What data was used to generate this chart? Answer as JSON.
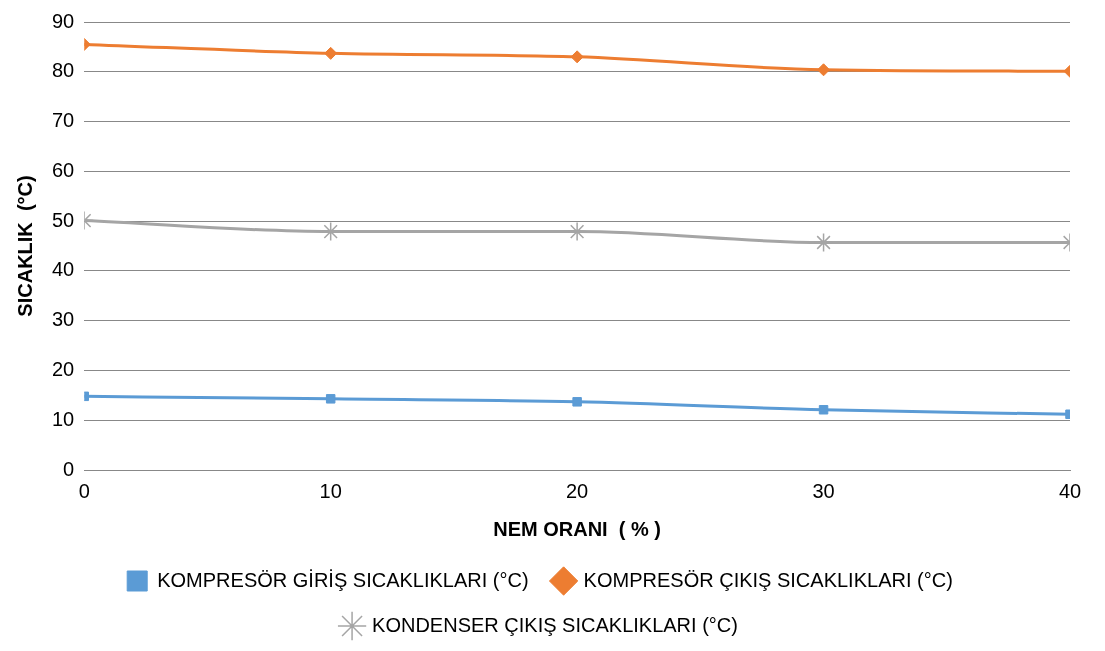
{
  "chart_data": {
    "type": "line",
    "xlabel": "NEM ORANI  ( % )",
    "ylabel": "SICAKLIK  (°C)",
    "x": [
      0,
      10,
      20,
      30,
      40
    ],
    "xlim": [
      0,
      40
    ],
    "xticks": [
      0,
      10,
      20,
      30,
      40
    ],
    "ylim": [
      0,
      90
    ],
    "yticks": [
      0,
      10,
      20,
      30,
      40,
      50,
      60,
      70,
      80,
      90
    ],
    "grid": "y",
    "legend": "bottom",
    "series": [
      {
        "name": "KOMPRESÖR GİRİŞ SICAKLIKLARI (°C)",
        "color": "#5b9bd5",
        "marker": "square",
        "values": [
          14.8,
          14.3,
          13.7,
          12.1,
          11.2
        ]
      },
      {
        "name": "KOMPRESÖR ÇIKIŞ SICAKLIKLARI (°C)",
        "color": "#ed7d31",
        "marker": "diamond",
        "values": [
          85.5,
          83.7,
          83.0,
          80.4,
          80.1
        ]
      },
      {
        "name": "KONDENSER ÇIKIŞ SICAKLIKLARI (°C)",
        "color": "#a5a5a5",
        "marker": "cross",
        "values": [
          50.1,
          47.9,
          47.9,
          45.7,
          45.7
        ]
      }
    ]
  }
}
